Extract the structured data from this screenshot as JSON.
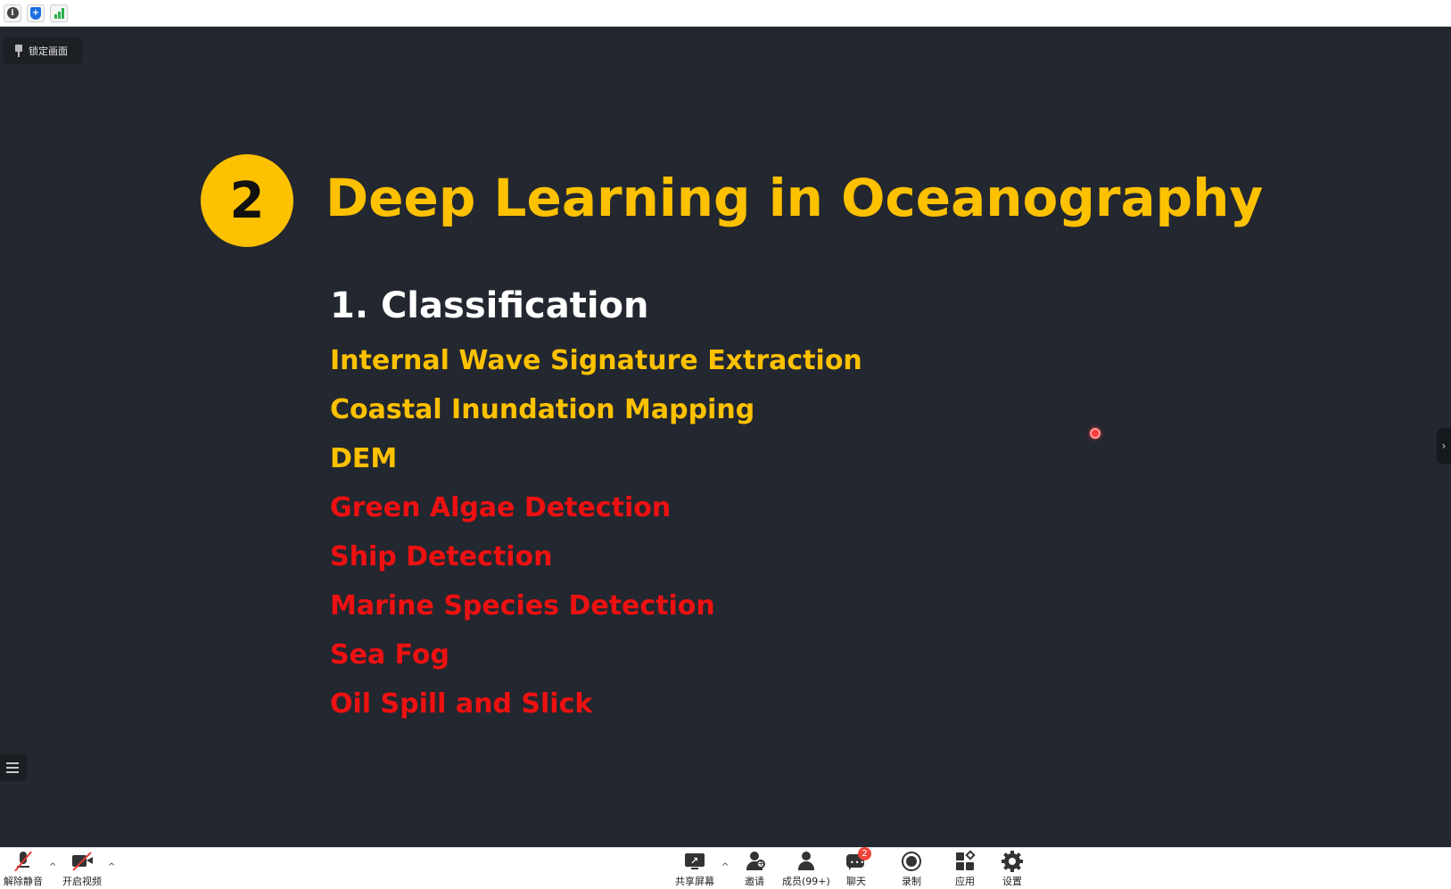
{
  "lock_button": {
    "label": "锁定画面"
  },
  "slide": {
    "number": "2",
    "title": "Deep Learning in Oceanography",
    "section_heading": "1. Classification",
    "items": [
      {
        "text": "Internal Wave Signature Extraction",
        "color": "#fdc100"
      },
      {
        "text": "Coastal Inundation Mapping",
        "color": "#fdc100"
      },
      {
        "text": "DEM",
        "color": "#fdc100"
      },
      {
        "text": "Green Algae Detection",
        "color": "#ee1111"
      },
      {
        "text": "Ship Detection",
        "color": "#ee1111"
      },
      {
        "text": "Marine Species Detection",
        "color": "#ee1111"
      },
      {
        "text": "Sea Fog",
        "color": "#ee1111"
      },
      {
        "text": "Oil Spill and Slick",
        "color": "#ee1111"
      }
    ]
  },
  "toolbar": {
    "unmute_label": "解除静音",
    "start_video_label": "开启视频",
    "share_screen_label": "共享屏幕",
    "invite_label": "邀请",
    "participants_label": "成员(99+)",
    "chat_label": "聊天",
    "chat_badge": "2",
    "record_label": "录制",
    "apps_label": "应用",
    "settings_label": "设置",
    "caret": "^"
  },
  "icons": {
    "top_info": "info-icon",
    "top_shield": "shield-icon",
    "top_signal": "signal-bars-icon",
    "side_handle": "chevron-right-icon",
    "side_handle_glyph": "›"
  }
}
